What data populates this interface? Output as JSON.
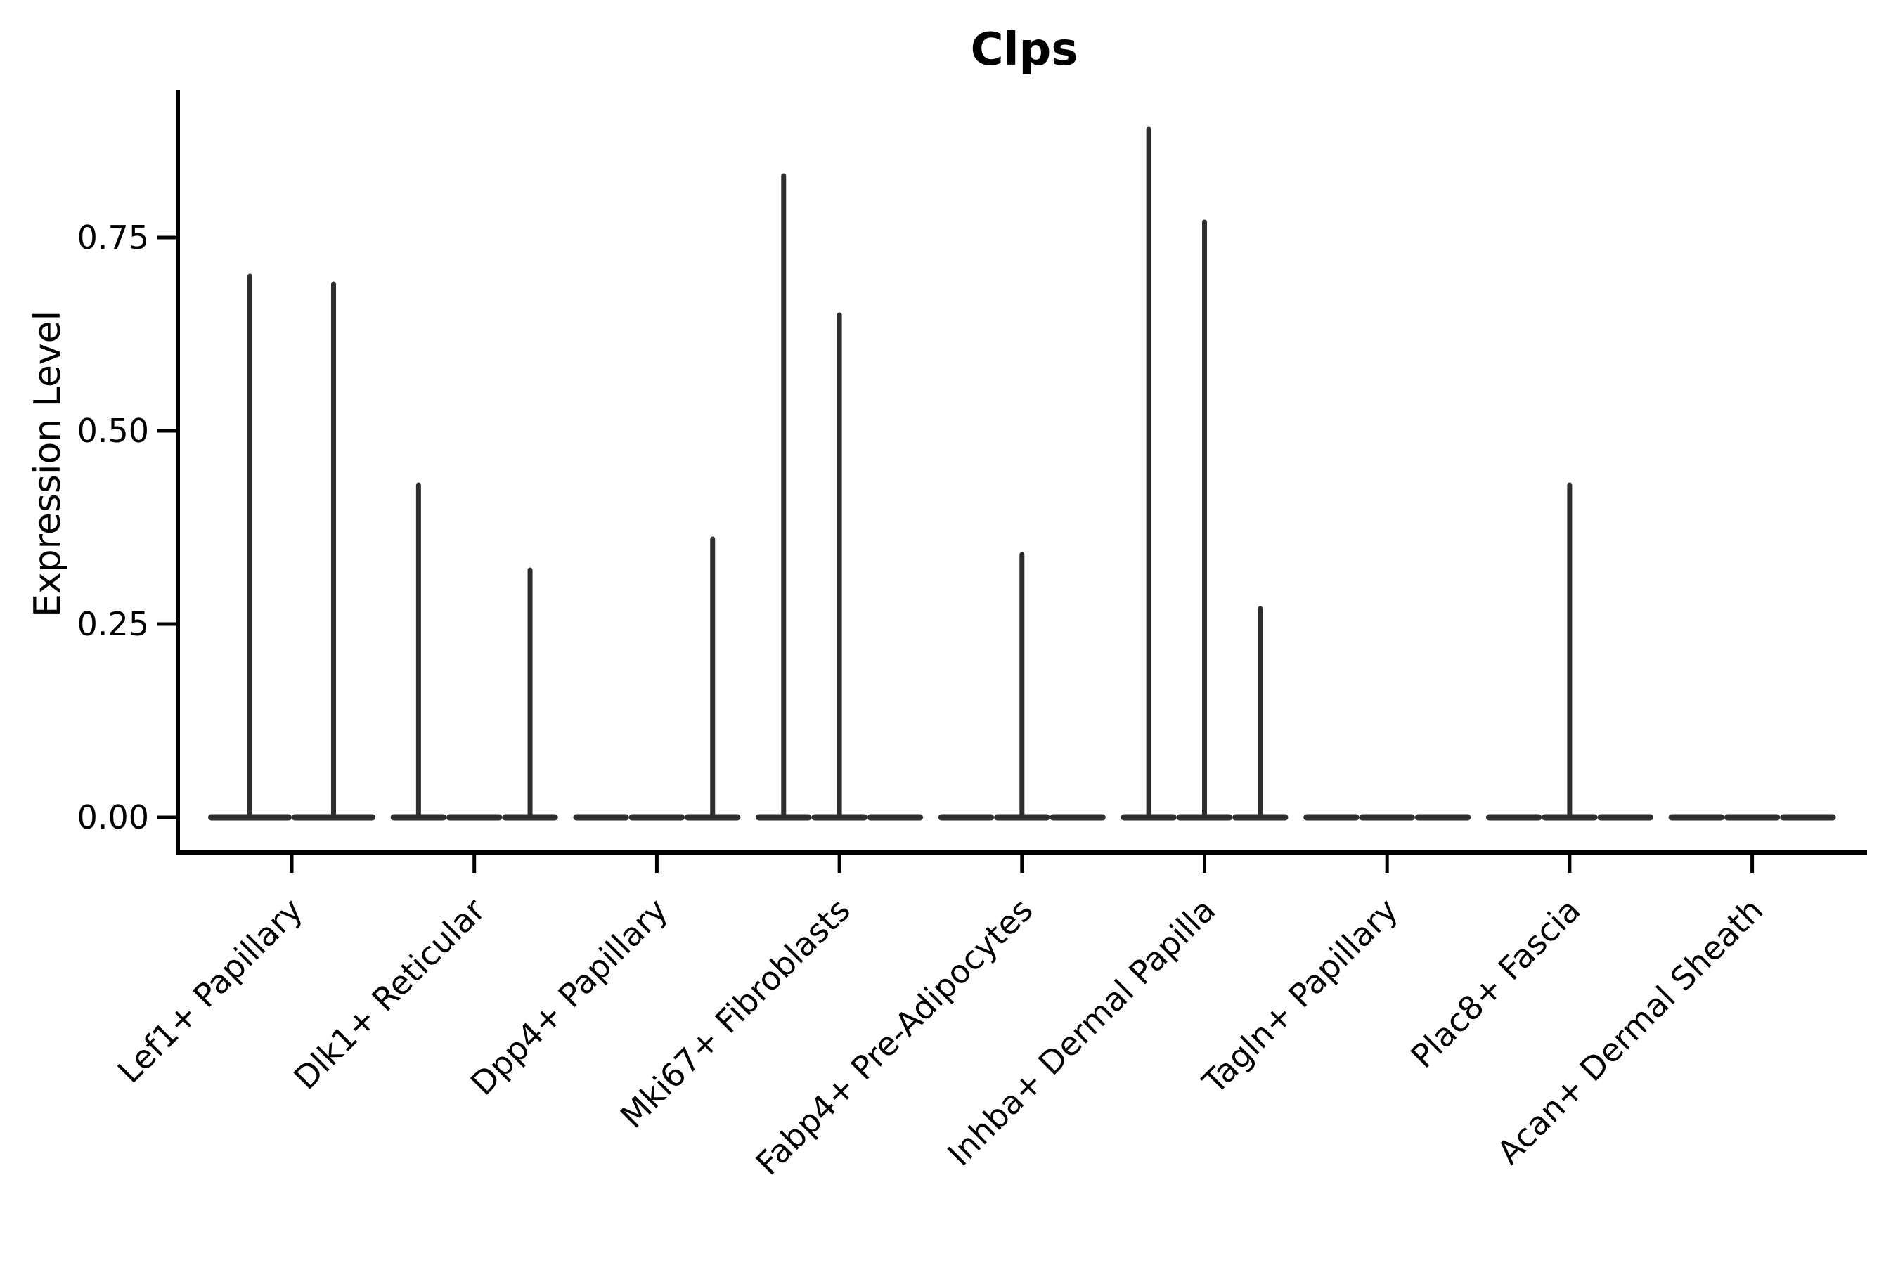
{
  "chart_data": {
    "type": "violin",
    "title": "Clps",
    "ylabel": "Expression Level",
    "xlabel": "",
    "ytick_labels": [
      "0.00",
      "0.25",
      "0.50",
      "0.75"
    ],
    "ytick_values": [
      0,
      0.25,
      0.5,
      0.75
    ],
    "ylim": [
      0,
      0.94
    ],
    "grid": false,
    "legend": "none",
    "x_label_rotation_deg": 45,
    "categories": [
      "Lef1+ Papillary",
      "Dlk1+ Reticular",
      "Dpp4+ Papillary",
      "Mki67+ Fibroblasts",
      "Fabp4+ Pre-Adipocytes",
      "Inhba+ Dermal Papilla",
      "Tagln+ Papillary",
      "Plac8+ Fascia",
      "Acan+ Dermal Sheath"
    ],
    "violins": [
      {
        "category": "Lef1+ Papillary",
        "sub_violins": 2,
        "spikes": [
          {
            "group": 1,
            "max": 0.7
          },
          {
            "group": 2,
            "max": 0.69
          }
        ]
      },
      {
        "category": "Dlk1+ Reticular",
        "sub_violins": 3,
        "spikes": [
          {
            "group": 1,
            "max": 0.43
          },
          {
            "group": 3,
            "max": 0.32
          }
        ]
      },
      {
        "category": "Dpp4+ Papillary",
        "sub_violins": 3,
        "spikes": [
          {
            "group": 3,
            "max": 0.36
          }
        ]
      },
      {
        "category": "Mki67+ Fibroblasts",
        "sub_violins": 3,
        "spikes": [
          {
            "group": 1,
            "max": 0.83
          },
          {
            "group": 2,
            "max": 0.65
          }
        ]
      },
      {
        "category": "Fabp4+ Pre-Adipocytes",
        "sub_violins": 3,
        "spikes": [
          {
            "group": 2,
            "max": 0.34
          }
        ]
      },
      {
        "category": "Inhba+ Dermal Papilla",
        "sub_violins": 3,
        "spikes": [
          {
            "group": 1,
            "max": 0.89
          },
          {
            "group": 2,
            "max": 0.77
          },
          {
            "group": 3,
            "max": 0.27
          }
        ]
      },
      {
        "category": "Tagln+ Papillary",
        "sub_violins": 3,
        "spikes": []
      },
      {
        "category": "Plac8+ Fascia",
        "sub_violins": 3,
        "spikes": [
          {
            "group": 2,
            "max": 0.43
          }
        ]
      },
      {
        "category": "Acan+ Dermal Sheath",
        "sub_violins": 3,
        "spikes": []
      }
    ],
    "colors": {
      "violin": "#2e2e2e",
      "axis": "#000000",
      "text": "#000000",
      "background": "#ffffff"
    }
  }
}
